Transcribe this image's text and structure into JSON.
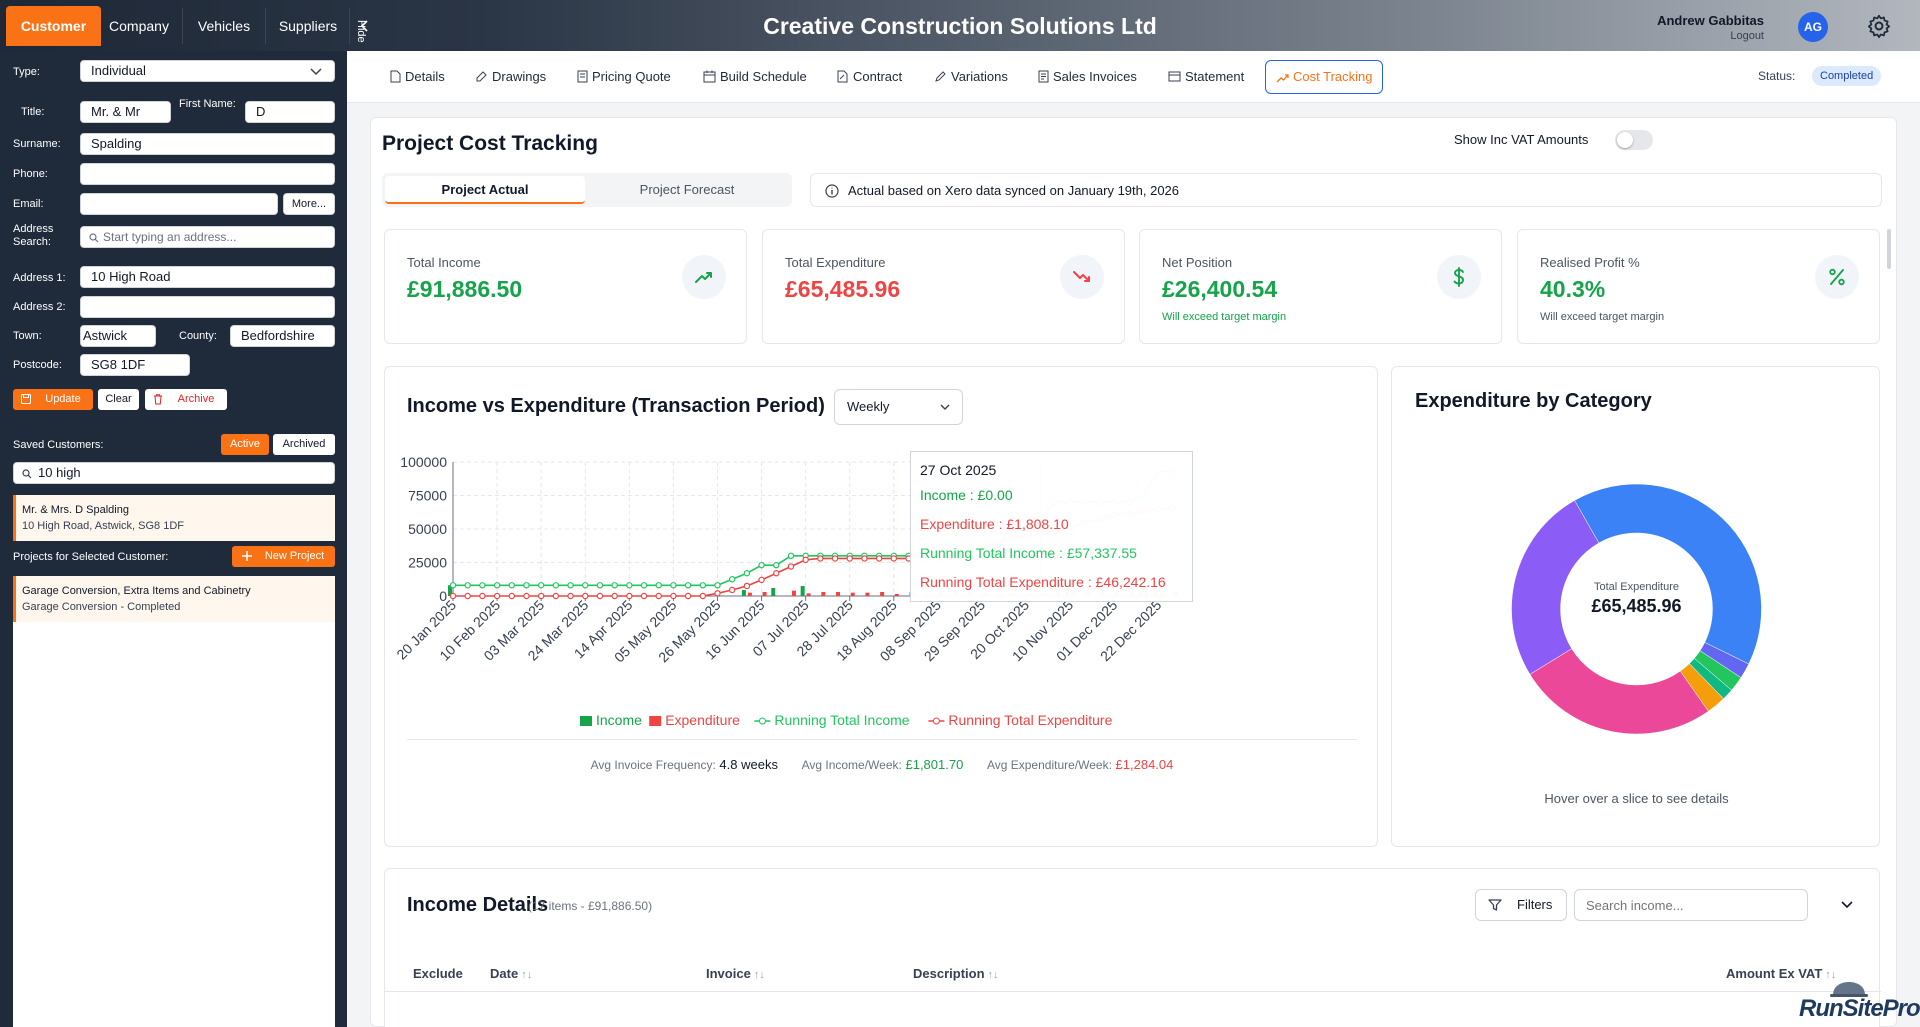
{
  "app": {
    "title": "Creative Construction Solutions Ltd"
  },
  "top_nav": {
    "tabs": [
      "Customer",
      "Company",
      "Vehicles",
      "Suppliers"
    ],
    "hide_label": "Hide"
  },
  "user": {
    "name": "Andrew Gabbitas",
    "initials": "AG",
    "logout": "Logout"
  },
  "customer_form": {
    "type_label": "Type:",
    "type_value": "Individual",
    "title_label": "Title:",
    "title_value": "Mr. & Mr",
    "first_name_label": "First Name:",
    "first_name_value": "D",
    "surname_label": "Surname:",
    "surname_value": "Spalding",
    "phone_label": "Phone:",
    "phone_value": "",
    "email_label": "Email:",
    "email_value": "",
    "more_button": "More...",
    "address_search_label": "Address Search:",
    "address_search_placeholder": "Start typing an address...",
    "address1_label": "Address 1:",
    "address1_value": "10 High Road",
    "address2_label": "Address 2:",
    "address2_value": "",
    "town_label": "Town:",
    "town_value": "Astwick",
    "county_label": "County:",
    "county_value": "Bedfordshire",
    "postcode_label": "Postcode:",
    "postcode_value": "SG8 1DF",
    "update_button": "Update",
    "clear_button": "Clear",
    "archive_button": "Archive"
  },
  "saved_customers": {
    "label": "Saved Customers:",
    "active_toggle": "Active",
    "archived_toggle": "Archived",
    "search_value": "10 high",
    "items": [
      {
        "name": "Mr. & Mrs. D Spalding",
        "address": "10 High Road, Astwick, SG8 1DF"
      }
    ]
  },
  "projects": {
    "label": "Projects for Selected Customer:",
    "new_button": "New Project",
    "items": [
      {
        "name": "Garage Conversion, Extra Items and Cabinetry",
        "status": "Garage Conversion - Completed"
      }
    ]
  },
  "project_tabs": {
    "items": [
      "Details",
      "Drawings",
      "Pricing Quote",
      "Build Schedule",
      "Contract",
      "Variations",
      "Sales Invoices",
      "Statement",
      "Cost Tracking"
    ],
    "active": "Cost Tracking",
    "status_label": "Status:",
    "status_value": "Completed"
  },
  "cost_tracking": {
    "title": "Project Cost Tracking",
    "vat_toggle_label": "Show Inc VAT Amounts",
    "view_tabs": [
      "Project Actual",
      "Project Forecast"
    ],
    "sync_note": "Actual based on Xero data synced on January 19th, 2026"
  },
  "kpis": [
    {
      "label": "Total Income",
      "value": "£91,886.50",
      "note": "",
      "color": "#16a34a",
      "icon": "trending-up-icon"
    },
    {
      "label": "Total Expenditure",
      "value": "£65,485.96",
      "note": "",
      "color": "#ef4444",
      "icon": "trending-down-icon"
    },
    {
      "label": "Net Position",
      "value": "£26,400.54",
      "note": "Will exceed target margin",
      "color": "#16a34a",
      "icon": "dollar-icon"
    },
    {
      "label": "Realised Profit %",
      "value": "40.3%",
      "note": "Will exceed target margin",
      "color": "#16a34a",
      "icon": "percent-icon"
    }
  ],
  "income_chart": {
    "title": "Income vs Expenditure (Transaction Period)",
    "period_select": "Weekly",
    "tooltip": {
      "date": "27 Oct 2025",
      "income": "Income : £0.00",
      "expenditure": "Expenditure : £1,808.10",
      "running_income": "Running Total Income : £57,337.55",
      "running_expenditure": "Running Total Expenditure : £46,242.16"
    },
    "stats": [
      {
        "label": "Avg Invoice Frequency:",
        "value": "4.8 weeks",
        "color": "#111827"
      },
      {
        "label": "Avg Income/Week:",
        "value": "£1,801.70",
        "color": "#16a34a"
      },
      {
        "label": "Avg Expenditure/Week:",
        "value": "£1,284.04",
        "color": "#ef4444"
      }
    ]
  },
  "category_chart": {
    "title": "Expenditure by Category",
    "center_label": "Total Expenditure",
    "center_value": "£65,485.96",
    "hint": "Hover over a slice to see details"
  },
  "income_details": {
    "title": "Income Details",
    "summary": "(17 items - £91,886.50)",
    "filters_button": "Filters",
    "search_placeholder": "Search income...",
    "columns": [
      "Exclude",
      "Date",
      "Invoice",
      "Description",
      "Amount Ex VAT"
    ]
  },
  "branding": {
    "logo": "RunSitePro"
  },
  "chart_data": [
    {
      "type": "bar",
      "title": "Income vs Expenditure (Transaction Period)",
      "xlabel": "",
      "ylabel": "",
      "ylim": [
        0,
        100000
      ],
      "yticks": [
        "100000",
        "75000",
        "50000",
        "25000",
        "0"
      ],
      "x_tick_labels": [
        "20 Jan 2025",
        "10 Feb 2025",
        "03 Mar 2025",
        "24 Mar 2025",
        "14 Apr 2025",
        "05 May 2025",
        "26 May 2025",
        "16 Jun 2025",
        "07 Jul 2025",
        "28 Jul 2025",
        "18 Aug 2025",
        "08 Sep 2025",
        "29 Sep 2025",
        "20 Oct 2025",
        "10 Nov 2025",
        "01 Dec 2025",
        "22 Dec 2025"
      ],
      "x": [
        "20 Jan 2025",
        "27 Jan 2025",
        "03 Feb 2025",
        "10 Feb 2025",
        "17 Feb 2025",
        "24 Feb 2025",
        "03 Mar 2025",
        "10 Mar 2025",
        "17 Mar 2025",
        "24 Mar 2025",
        "31 Mar 2025",
        "07 Apr 2025",
        "14 Apr 2025",
        "21 Apr 2025",
        "28 Apr 2025",
        "05 May 2025",
        "12 May 2025",
        "19 May 2025",
        "26 May 2025",
        "02 Jun 2025",
        "09 Jun 2025",
        "16 Jun 2025",
        "23 Jun 2025",
        "30 Jun 2025",
        "07 Jul 2025",
        "14 Jul 2025",
        "21 Jul 2025",
        "28 Jul 2025",
        "04 Aug 2025",
        "11 Aug 2025",
        "18 Aug 2025",
        "25 Aug 2025",
        "01 Sep 2025",
        "08 Sep 2025",
        "15 Sep 2025",
        "22 Sep 2025",
        "29 Sep 2025",
        "06 Oct 2025",
        "13 Oct 2025",
        "20 Oct 2025",
        "27 Oct 2025",
        "03 Nov 2025",
        "10 Nov 2025",
        "17 Nov 2025",
        "24 Nov 2025",
        "01 Dec 2025",
        "08 Dec 2025",
        "15 Dec 2025",
        "22 Dec 2025",
        "29 Dec 2025"
      ],
      "series": [
        {
          "name": "Income",
          "kind": "bar",
          "color": "#16a34a",
          "values": [
            8000,
            0,
            0,
            0,
            0,
            0,
            0,
            0,
            0,
            0,
            0,
            0,
            0,
            0,
            0,
            0,
            0,
            0,
            0,
            0,
            4500,
            0,
            6000,
            0,
            7500,
            0,
            0,
            0,
            0,
            0,
            0,
            0,
            0,
            0,
            0,
            0,
            0,
            0,
            0,
            0,
            0,
            0,
            13000,
            0,
            0,
            0,
            0,
            5500,
            13500,
            0
          ]
        },
        {
          "name": "Expenditure",
          "kind": "bar",
          "color": "#ef4444",
          "values": [
            0,
            0,
            0,
            0,
            0,
            0,
            0,
            0,
            0,
            0,
            0,
            0,
            0,
            0,
            0,
            0,
            0,
            0,
            0,
            0,
            2500,
            3000,
            0,
            4000,
            2000,
            3000,
            3000,
            2500,
            2500,
            3000,
            1500,
            3000,
            1500,
            4000,
            3500,
            3000,
            2000,
            1500,
            1500,
            1800,
            1808.1,
            3000,
            4000,
            3500,
            3000,
            3000,
            3500,
            3000,
            2500,
            4000
          ]
        },
        {
          "name": "Running Total Income",
          "kind": "line",
          "color": "#22c55e",
          "values": [
            8000,
            8000,
            8000,
            8000,
            8000,
            8000,
            8000,
            8000,
            8000,
            8000,
            8000,
            8000,
            8000,
            8000,
            8000,
            8000,
            8000,
            8000,
            8000,
            12500,
            17000,
            23000,
            23000,
            30000,
            30000,
            30000,
            30000,
            30000,
            30000,
            30000,
            30000,
            30000,
            30000,
            30000,
            30000,
            30000,
            30000,
            30000,
            57337.55,
            57337.55,
            57337.55,
            70000,
            70000,
            70000,
            70000,
            70000,
            70000,
            75500,
            93000,
            93000
          ]
        },
        {
          "name": "Running Total Expenditure",
          "kind": "line",
          "color": "#ef4444",
          "values": [
            0,
            0,
            0,
            0,
            0,
            0,
            0,
            0,
            0,
            0,
            0,
            0,
            0,
            0,
            0,
            0,
            0,
            0,
            2000,
            4500,
            7500,
            12000,
            17000,
            22000,
            27000,
            28000,
            28000,
            28000,
            28000,
            28000,
            28000,
            28000,
            28000,
            28000,
            28000,
            28000,
            35000,
            40000,
            43000,
            44434.06,
            46242.16,
            48000,
            51000,
            54500,
            57500,
            60500,
            61000,
            63000,
            64500,
            65485.96
          ]
        }
      ],
      "legend": "bottom",
      "grid": true
    },
    {
      "type": "pie",
      "title": "Expenditure by Category",
      "total": 65485.96,
      "slices": [
        {
          "value": 40.5,
          "color": "#3b82f6"
        },
        {
          "value": 2,
          "color": "#6366f1"
        },
        {
          "value": 2,
          "color": "#22c55e"
        },
        {
          "value": 1.5,
          "color": "#10b981"
        },
        {
          "value": 2.5,
          "color": "#f59e0b"
        },
        {
          "value": 26,
          "color": "#ec4899"
        },
        {
          "value": 25.5,
          "color": "#8b5cf6"
        }
      ]
    }
  ]
}
